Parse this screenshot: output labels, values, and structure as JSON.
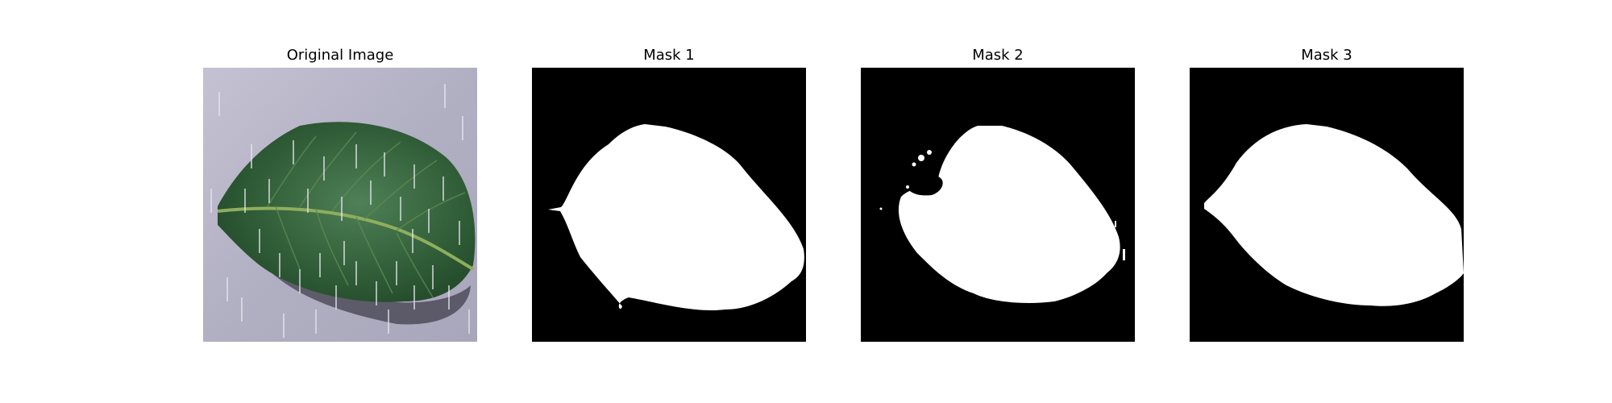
{
  "figure": {
    "panels": [
      {
        "title": "Original Image",
        "kind": "photo",
        "subject": "leaf-icon"
      },
      {
        "title": "Mask 1",
        "kind": "mask"
      },
      {
        "title": "Mask 2",
        "kind": "mask"
      },
      {
        "title": "Mask 3",
        "kind": "mask"
      }
    ]
  },
  "colors": {
    "background": "#ffffff",
    "mask_fg": "#ffffff",
    "mask_bg": "#000000",
    "leaf_dark": "#234a2c",
    "leaf_light": "#4f8056",
    "surface": "#9b98b2"
  }
}
